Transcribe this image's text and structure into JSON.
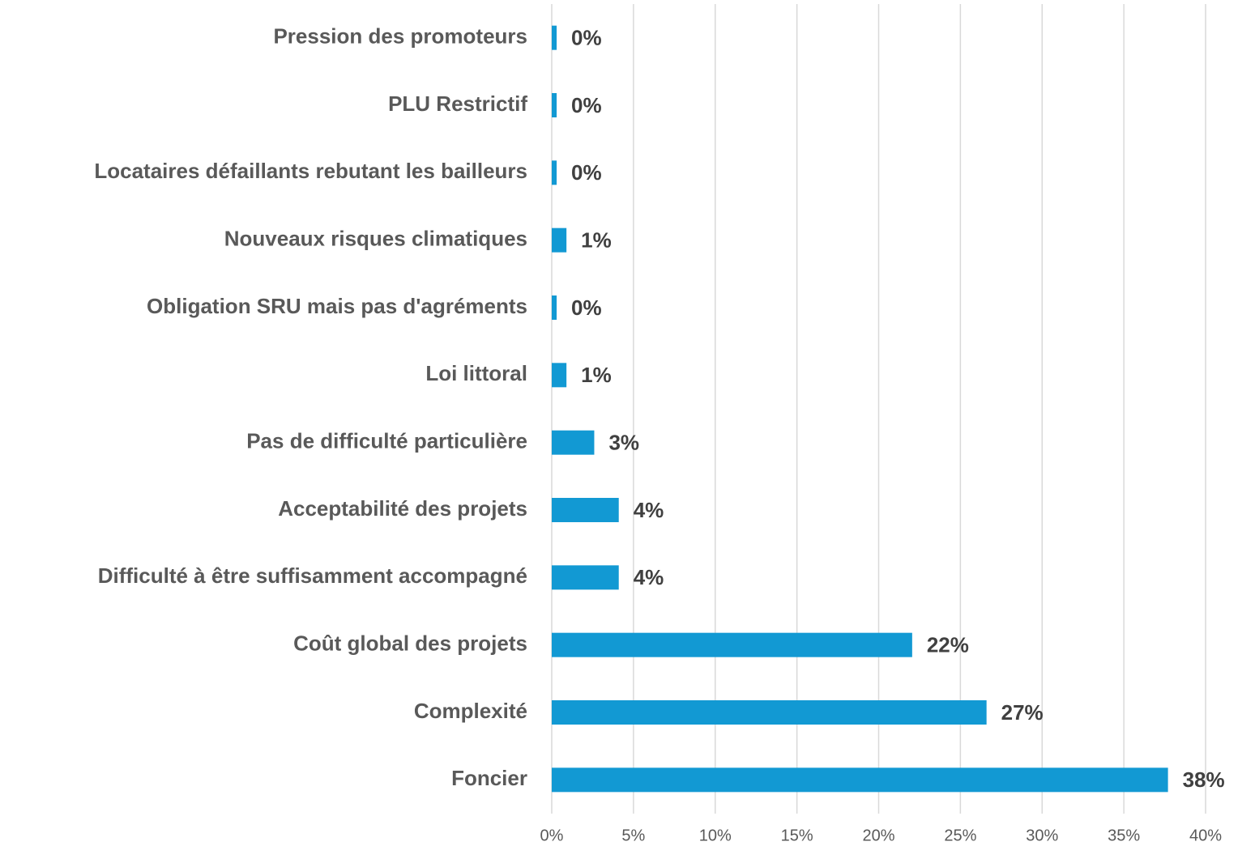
{
  "chart_data": {
    "type": "bar",
    "orientation": "horizontal",
    "categories": [
      "Pression des promoteurs",
      "PLU Restrictif",
      "Locataires défaillants rebutant les bailleurs",
      "Nouveaux risques climatiques",
      "Obligation SRU mais pas d'agréments",
      "Loi littoral",
      "Pas de difficulté particulière",
      "Acceptabilité des projets",
      "Difficulté à être suffisamment accompagné",
      "Coût global des projets",
      "Complexité",
      "Foncier"
    ],
    "values": [
      0.3,
      0.3,
      0.3,
      0.9,
      0.3,
      0.9,
      2.6,
      4.1,
      4.1,
      22.05,
      26.6,
      37.7
    ],
    "value_labels": [
      "0%",
      "0%",
      "0%",
      "1%",
      "0%",
      "1%",
      "3%",
      "4%",
      "4%",
      "22%",
      "27%",
      "38%"
    ],
    "color": "#1299d3",
    "xlim": [
      0,
      40
    ],
    "xticks": [
      {
        "value": 0,
        "label": "0%"
      },
      {
        "value": 5,
        "label": "5%"
      },
      {
        "value": 10,
        "label": "10%"
      },
      {
        "value": 15,
        "label": "15%"
      },
      {
        "value": 20,
        "label": "20%"
      },
      {
        "value": 25,
        "label": "25%"
      },
      {
        "value": 30,
        "label": "30%"
      },
      {
        "value": 35,
        "label": "35%"
      },
      {
        "value": 40,
        "label": "40%"
      }
    ],
    "grid": true
  }
}
